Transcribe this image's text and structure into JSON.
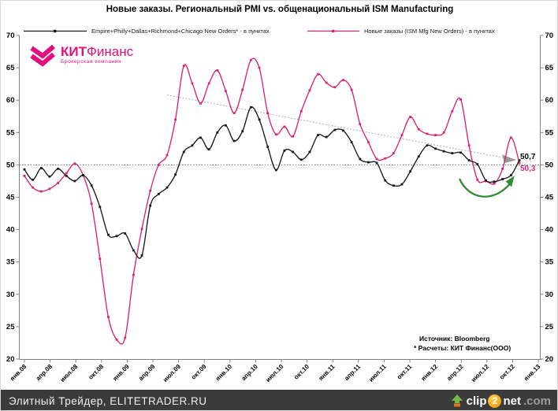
{
  "title": "Новые заказы. Региональный PMI vs. общенациональный ISM Manufacturing",
  "logo": {
    "wordmark_bold": "КИТ",
    "wordmark_rest": "Финанс",
    "tagline": "Брокерская компания",
    "color": "#e20f7e"
  },
  "legend": [
    {
      "label": "Empire+Philly+Dallas+Richmond+Chicago  New Orders* - в пунктах",
      "color": "#1a1a1a"
    },
    {
      "label": "Новые заказы (ISM Mfg New Orders) - в пунктах",
      "color": "#d92475"
    }
  ],
  "annotations": {
    "black_end_label": "50,7",
    "pink_end_label": "50,3",
    "pink_color": "#d92475"
  },
  "source": {
    "line1": "Источник: Bloomberg",
    "line2": "* Расчеты: КИТ Финанс(ООО)"
  },
  "footer": {
    "left_text": "Элитный Трейдер, ELITETRADER.RU",
    "clip2net": {
      "clip": "clip",
      "two": "2",
      "net": "net",
      "com": ".com"
    }
  },
  "chart_data": {
    "type": "line",
    "title": "Новые заказы. Региональный PMI vs. общенациональный ISM Manufacturing",
    "ylim": [
      20,
      70
    ],
    "ytick_step": 5,
    "grid_reference_y": 50,
    "x_start": "янв.08",
    "x_end": "дек.12",
    "x_tick_labels": [
      "янв.08",
      "апр.08",
      "июл.08",
      "окт.08",
      "янв.09",
      "апр.09",
      "июл.09",
      "окт.09",
      "янв.10",
      "апр.10",
      "июл.10",
      "окт.10",
      "янв.11",
      "апр.11",
      "июл.11",
      "окт.11",
      "янв.12",
      "апр.12",
      "июл.12",
      "окт.12",
      "янв.13"
    ],
    "series": [
      {
        "name": "Новые заказы (ISM Mfg New Orders) - в пунктах",
        "color": "#d92475",
        "values": [
          48.3,
          46.5,
          45.9,
          46.3,
          47.2,
          48.7,
          50.2,
          48.4,
          44.0,
          35.5,
          26.5,
          23.0,
          23.3,
          33.0,
          40.1,
          46.0,
          50.0,
          51.5,
          57.0,
          65.3,
          62.6,
          59.5,
          62.6,
          64.6,
          61.4,
          58.0,
          61.6,
          66.2,
          65.0,
          58.0,
          54.7,
          55.9,
          54.4,
          58.3,
          61.5,
          64.0,
          62.7,
          62.0,
          63.1,
          61.6,
          56.3,
          53.5,
          50.9,
          51.0,
          51.8,
          54.6,
          57.4,
          55.5,
          54.8,
          54.6,
          55.0,
          58.3,
          60.1,
          53.0,
          47.7,
          47.5,
          47.1,
          49.4,
          54.2,
          50.3
        ]
      },
      {
        "name": "Empire+Philly+Dallas+Richmond+Chicago  New Orders* - в пунктах",
        "color": "#1a1a1a",
        "values": [
          49.3,
          47.7,
          49.5,
          48.2,
          49.4,
          48.3,
          47.5,
          48.4,
          46.8,
          43.5,
          39.2,
          39.0,
          39.4,
          36.8,
          36.0,
          43.7,
          45.5,
          46.5,
          48.5,
          52.0,
          53.0,
          54.2,
          52.4,
          55.0,
          56.1,
          53.7,
          55.2,
          58.9,
          57.0,
          52.8,
          49.2,
          52.2,
          52.0,
          50.8,
          52.0,
          54.6,
          54.3,
          55.4,
          55.3,
          53.5,
          50.9,
          50.4,
          50.3,
          47.6,
          46.8,
          47.0,
          49.0,
          51.3,
          53.0,
          52.5,
          52.1,
          51.8,
          51.9,
          50.7,
          50.1,
          47.6,
          47.4,
          47.8,
          48.4,
          50.7
        ]
      }
    ],
    "trend_line": {
      "x1_month": 17,
      "y1_value": 60.8,
      "x2_month": 57.6,
      "y2_value": 51.0,
      "color": "#b3b3b3"
    },
    "final_values": {
      "regional": 50.7,
      "ism": 50.3
    },
    "legend_position": "top",
    "grid": "reference line at 50 only"
  }
}
